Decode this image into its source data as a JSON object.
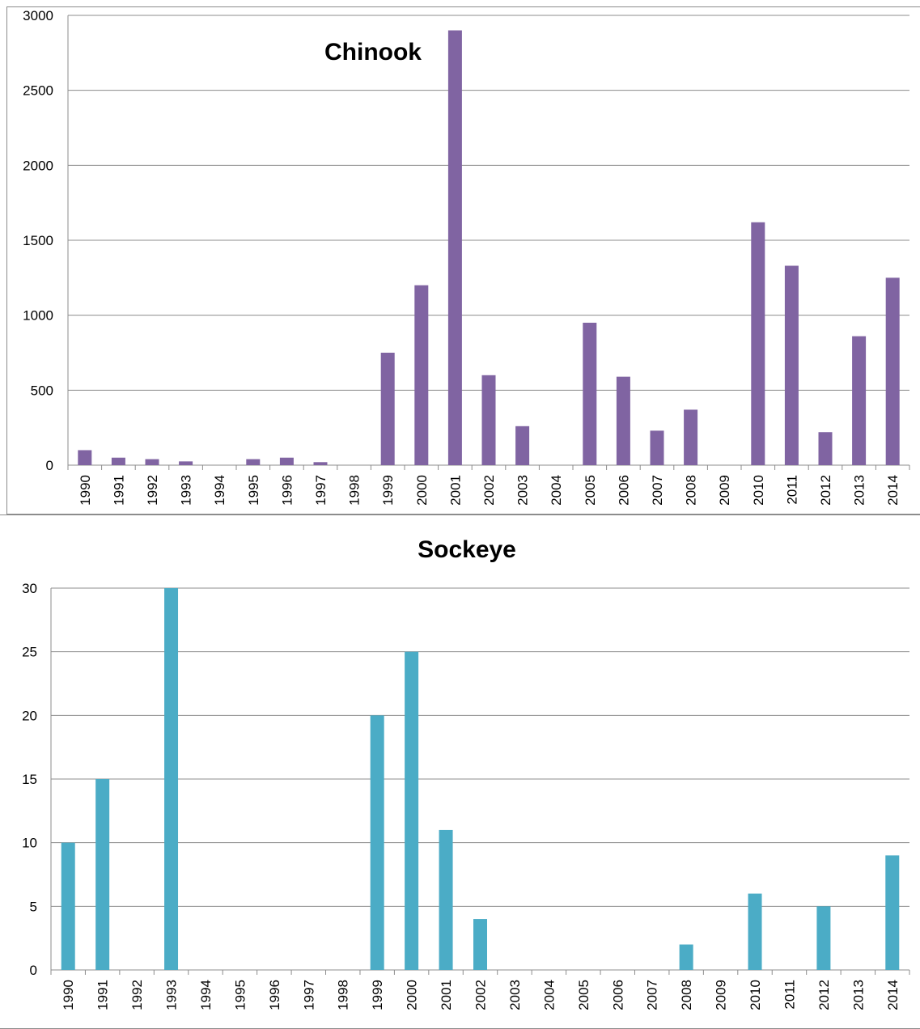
{
  "chart_data": [
    {
      "type": "bar",
      "title": "Chinook",
      "xlabel": "",
      "ylabel": "",
      "categories": [
        "1990",
        "1991",
        "1992",
        "1993",
        "1994",
        "1995",
        "1996",
        "1997",
        "1998",
        "1999",
        "2000",
        "2001",
        "2002",
        "2003",
        "2004",
        "2005",
        "2006",
        "2007",
        "2008",
        "2009",
        "2010",
        "2011",
        "2012",
        "2013",
        "2014"
      ],
      "values": [
        100,
        50,
        40,
        25,
        0,
        40,
        50,
        20,
        0,
        750,
        1200,
        2900,
        600,
        260,
        0,
        950,
        590,
        230,
        370,
        0,
        1620,
        1330,
        220,
        860,
        1250
      ],
      "ylim": [
        0,
        3000
      ],
      "yticks": [
        "0",
        "500",
        "1000",
        "1500",
        "2000",
        "2500",
        "3000"
      ],
      "grid": true,
      "legend": "none",
      "color": "#8064a2"
    },
    {
      "type": "bar",
      "title": "Sockeye",
      "xlabel": "",
      "ylabel": "",
      "categories": [
        "1990",
        "1991",
        "1992",
        "1993",
        "1994",
        "1995",
        "1996",
        "1997",
        "1998",
        "1999",
        "2000",
        "2001",
        "2002",
        "2003",
        "2004",
        "2005",
        "2006",
        "2007",
        "2008",
        "2009",
        "2010",
        "2011",
        "2012",
        "2013",
        "2014"
      ],
      "values": [
        10,
        15,
        0,
        30,
        0,
        0,
        0,
        0,
        0,
        20,
        25,
        11,
        4,
        0,
        0,
        0,
        0,
        0,
        2,
        0,
        6,
        0,
        5,
        0,
        9
      ],
      "ylim": [
        0,
        30
      ],
      "yticks": [
        "0",
        "5",
        "10",
        "15",
        "20",
        "25",
        "30"
      ],
      "grid": true,
      "legend": "none",
      "color": "#4bacc6"
    }
  ]
}
